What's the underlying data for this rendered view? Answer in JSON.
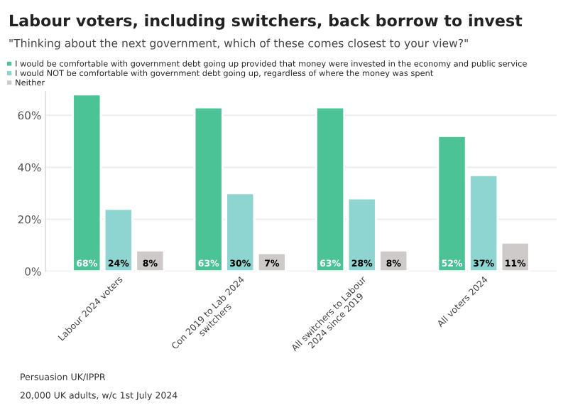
{
  "chart_data": {
    "type": "bar",
    "title": "Labour voters, including switchers, back borrow to invest",
    "subtitle": "\"Thinking about the next government, which of these comes closest to your view?\"",
    "categories": [
      "Labour 2024 voters",
      "Con 2019 to Lab 2024\nswitchers",
      "All switchers to Labour\n2024 since 2019",
      "All voters 2024"
    ],
    "series": [
      {
        "name": "I would be comfortable with government debt going up provided that money were invested in the economy and public service",
        "color": "#4cc297",
        "values": [
          68,
          63,
          63,
          52
        ],
        "value_labels": [
          "68%",
          "63%",
          "63%",
          "52%"
        ]
      },
      {
        "name": "I would NOT be comfortable with government debt going up, regardless of where the money was spent",
        "color": "#8ed4d0",
        "values": [
          24,
          30,
          28,
          37
        ],
        "value_labels": [
          "24%",
          "30%",
          "28%",
          "37%"
        ]
      },
      {
        "name": "Neither",
        "color": "#cfcaca",
        "values": [
          8,
          7,
          8,
          11
        ],
        "value_labels": [
          "8%",
          "7%",
          "8%",
          "11%"
        ]
      }
    ],
    "ylim": [
      0,
      69
    ],
    "yticks": [
      {
        "value": 0,
        "label": "0%"
      },
      {
        "value": 20,
        "label": "20%"
      },
      {
        "value": 40,
        "label": "40%"
      },
      {
        "value": 60,
        "label": "60%"
      }
    ],
    "grid": "y",
    "legend": "top",
    "annotations": [
      "Persuasion UK/IPPR",
      "20,000 UK adults, w/c 1st July 2024"
    ]
  }
}
